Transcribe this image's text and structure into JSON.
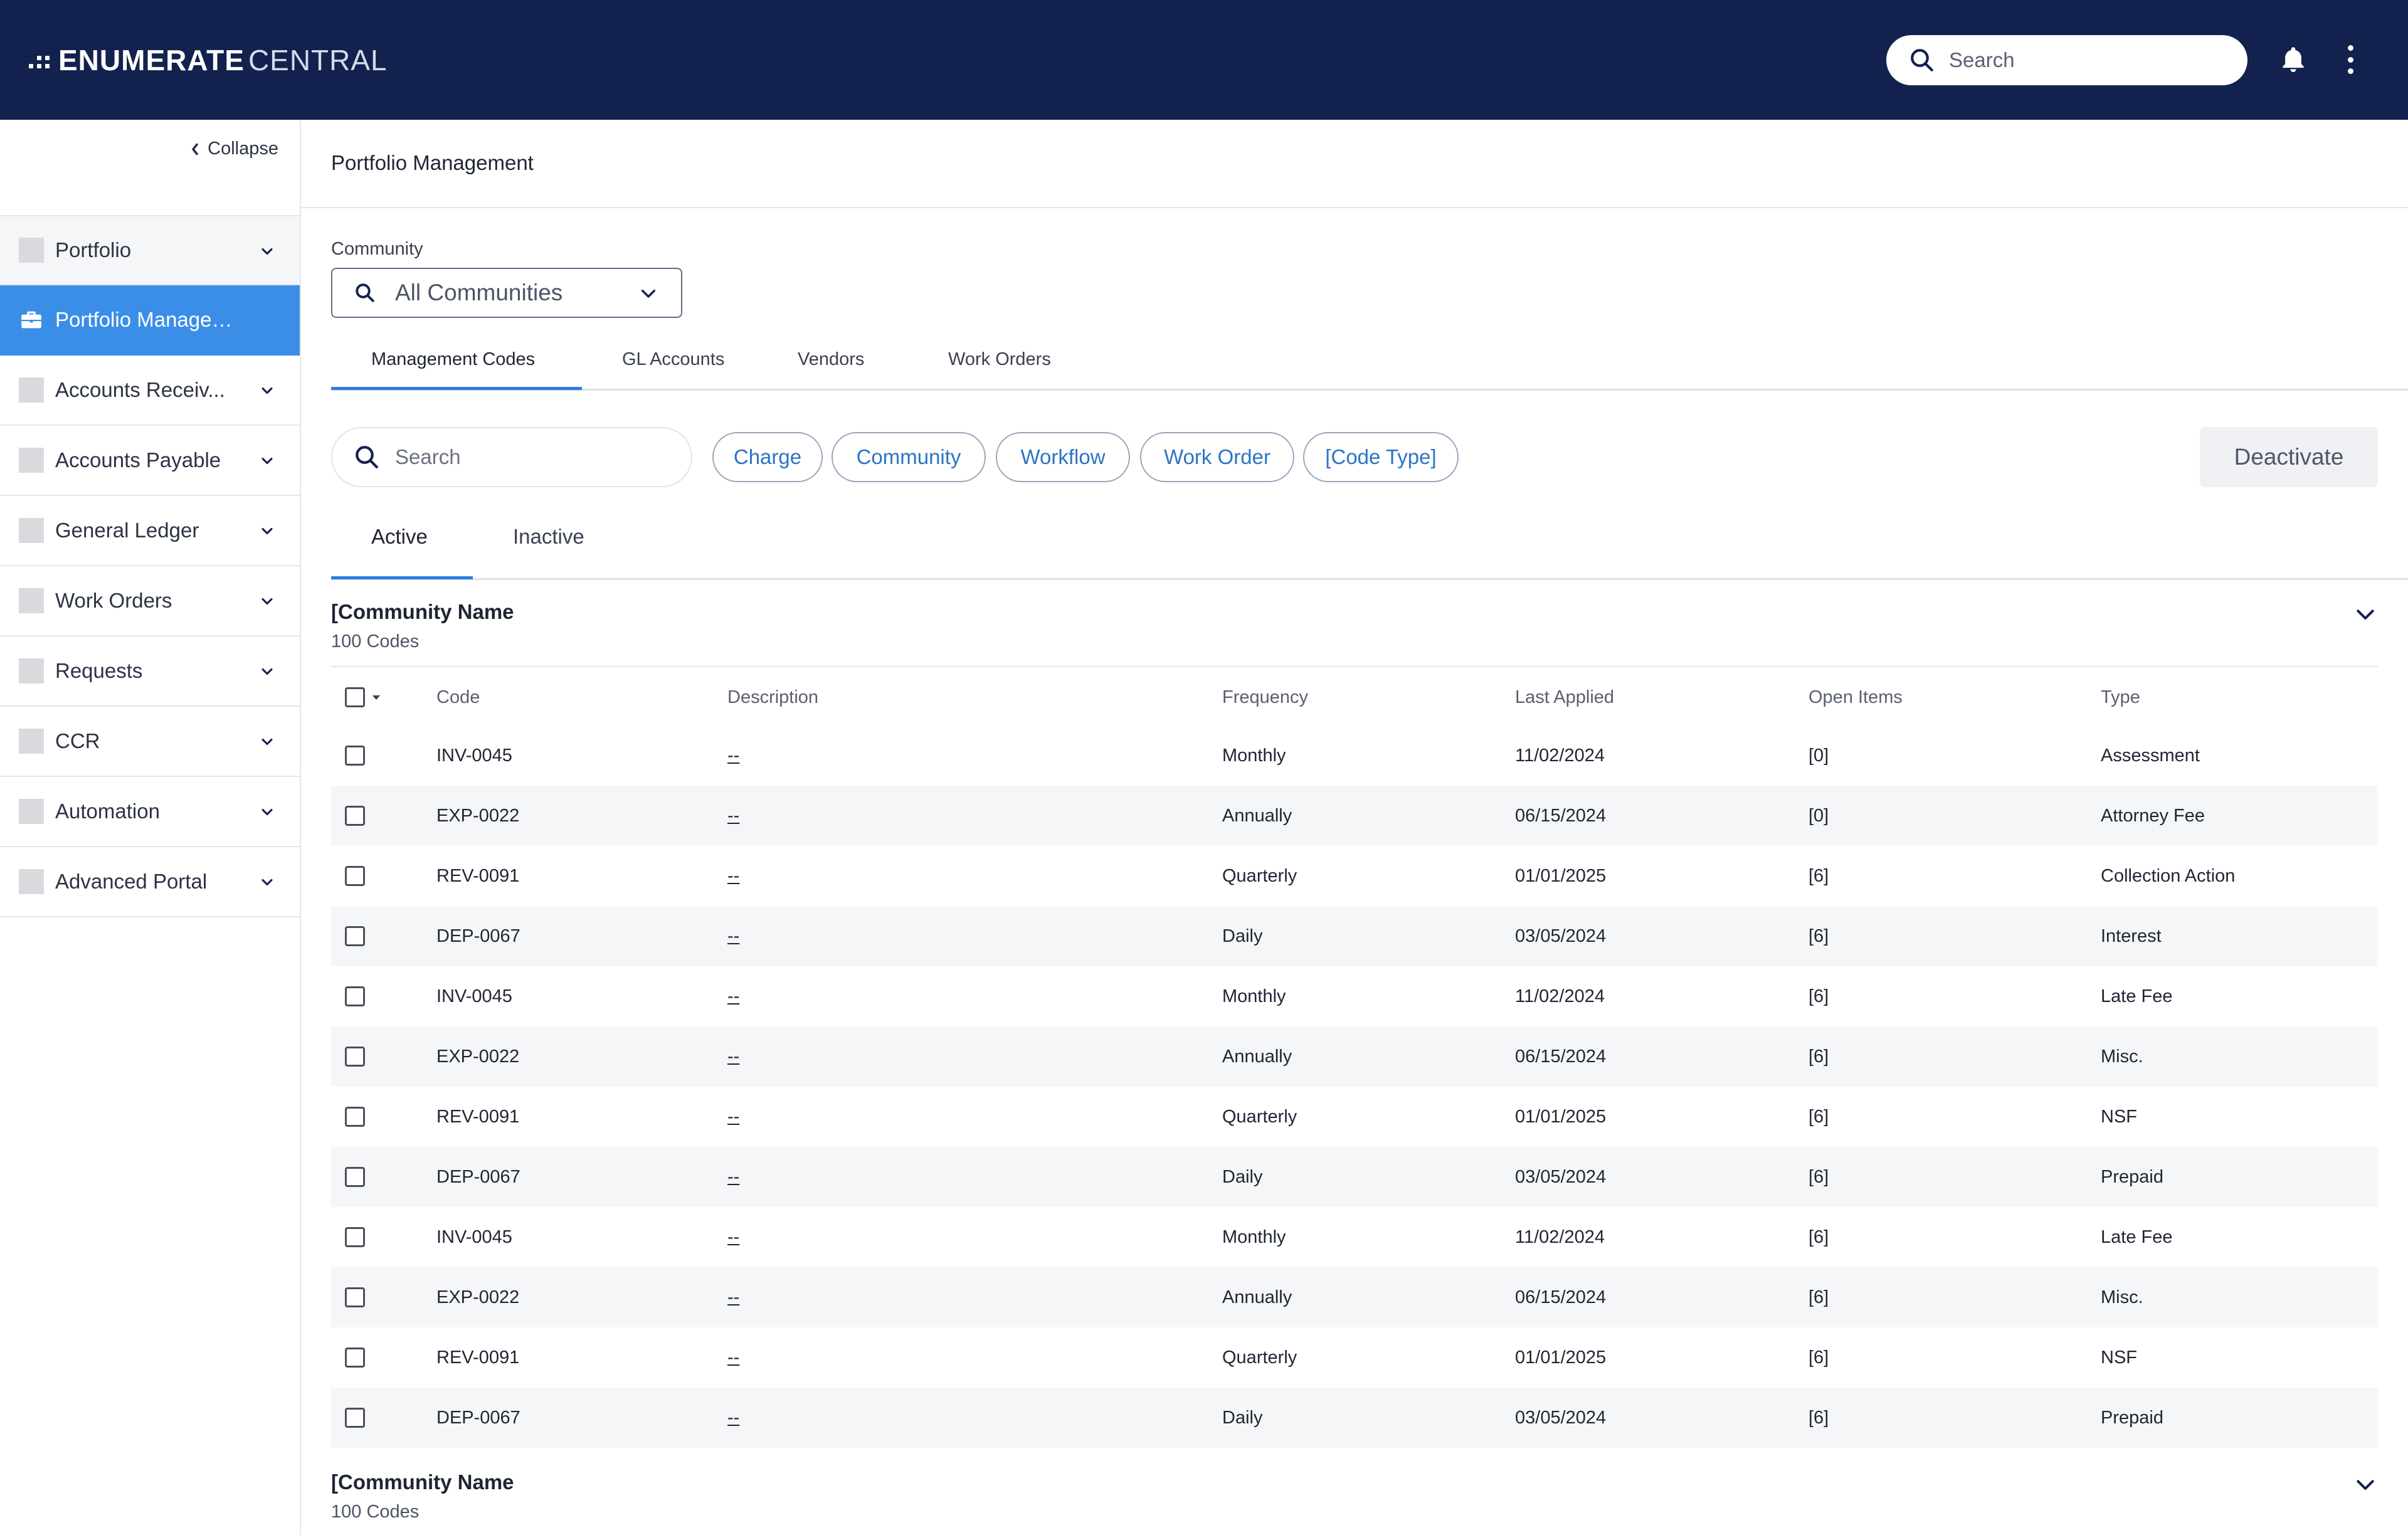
{
  "brand": {
    "strong": "ENUMERATE",
    "light": "CENTRAL"
  },
  "header": {
    "search_placeholder": "Search",
    "bell_icon": "bell-icon",
    "menu_icon": "more-vertical-icon"
  },
  "colors": {
    "topbar": "#13214e",
    "active_nav": "#3b8ee8",
    "accent": "#2f7de1",
    "chip_text": "#2d73c6"
  },
  "sidebar": {
    "collapse_label": "Collapse",
    "items": [
      {
        "label": "Portfolio",
        "active": false
      },
      {
        "label": "Portfolio Management",
        "active": true,
        "icon": "briefcase-icon"
      },
      {
        "label": "Accounts Receiv...",
        "active": false
      },
      {
        "label": "Accounts Payable",
        "active": false
      },
      {
        "label": "General Ledger",
        "active": false
      },
      {
        "label": "Work Orders",
        "active": false
      },
      {
        "label": "Requests",
        "active": false
      },
      {
        "label": "CCR",
        "active": false
      },
      {
        "label": "Automation",
        "active": false
      },
      {
        "label": "Advanced Portal",
        "active": false
      }
    ]
  },
  "page": {
    "title": "Portfolio Management",
    "community_label": "Community",
    "community_value": "All Communities"
  },
  "tabs": [
    "Management Codes",
    "GL Accounts",
    "Vendors",
    "Work Orders"
  ],
  "active_tab": "Management Codes",
  "filters": {
    "search_placeholder": "Search",
    "chips": [
      "Charge",
      "Community",
      "Workflow",
      "Work Order",
      "[Code Type]"
    ],
    "deactivate_label": "Deactivate"
  },
  "status_tabs": [
    "Active",
    "Inactive"
  ],
  "active_status_tab": "Active",
  "table": {
    "columns": [
      "Code",
      "Description",
      "Frequency",
      "Last Applied",
      "Open Items",
      "Type"
    ],
    "groups": [
      {
        "name": "[Community Name",
        "count": "100 Codes",
        "rows": [
          {
            "code": "INV-0045",
            "description": "--",
            "frequency": "Monthly",
            "last_applied": "11/02/2024",
            "open_items": "[0]",
            "type": "Assessment"
          },
          {
            "code": "EXP-0022",
            "description": "--",
            "frequency": "Annually",
            "last_applied": "06/15/2024",
            "open_items": "[0]",
            "type": "Attorney Fee"
          },
          {
            "code": "REV-0091",
            "description": "--",
            "frequency": "Quarterly",
            "last_applied": "01/01/2025",
            "open_items": "[6]",
            "type": "Collection Action"
          },
          {
            "code": "DEP-0067",
            "description": "--",
            "frequency": "Daily",
            "last_applied": "03/05/2024",
            "open_items": "[6]",
            "type": "Interest"
          },
          {
            "code": "INV-0045",
            "description": "--",
            "frequency": "Monthly",
            "last_applied": "11/02/2024",
            "open_items": "[6]",
            "type": "Late Fee"
          },
          {
            "code": "EXP-0022",
            "description": "--",
            "frequency": "Annually",
            "last_applied": "06/15/2024",
            "open_items": "[6]",
            "type": "Misc."
          },
          {
            "code": "REV-0091",
            "description": "--",
            "frequency": "Quarterly",
            "last_applied": "01/01/2025",
            "open_items": "[6]",
            "type": "NSF"
          },
          {
            "code": "DEP-0067",
            "description": "--",
            "frequency": "Daily",
            "last_applied": "03/05/2024",
            "open_items": "[6]",
            "type": "Prepaid"
          },
          {
            "code": "INV-0045",
            "description": "--",
            "frequency": "Monthly",
            "last_applied": "11/02/2024",
            "open_items": "[6]",
            "type": "Late Fee"
          },
          {
            "code": "EXP-0022",
            "description": "--",
            "frequency": "Annually",
            "last_applied": "06/15/2024",
            "open_items": "[6]",
            "type": "Misc."
          },
          {
            "code": "REV-0091",
            "description": "--",
            "frequency": "Quarterly",
            "last_applied": "01/01/2025",
            "open_items": "[6]",
            "type": "NSF"
          },
          {
            "code": "DEP-0067",
            "description": "--",
            "frequency": "Daily",
            "last_applied": "03/05/2024",
            "open_items": "[6]",
            "type": "Prepaid"
          }
        ]
      },
      {
        "name": "[Community Name",
        "count": "100 Codes",
        "rows": []
      }
    ]
  }
}
